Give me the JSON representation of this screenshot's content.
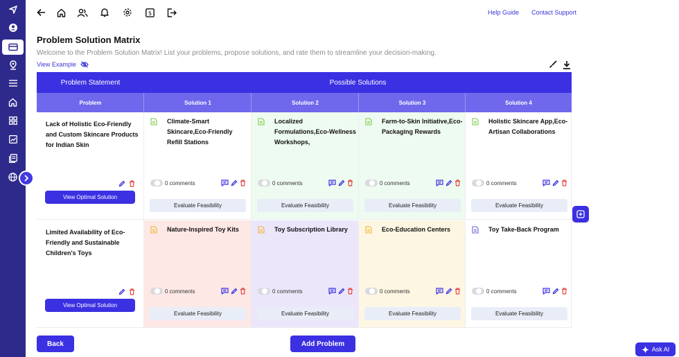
{
  "topbar": {
    "help_guide": "Help Guide",
    "contact_support": "Contact Support"
  },
  "page": {
    "title": "Problem Solution Matrix",
    "description": "Welcome to the Problem Solution Matrix! List your problems, propose solutions, and rate them to streamline your decision-making.",
    "view_example": "View Example"
  },
  "matrix": {
    "header_problem_statement": "Problem Statement",
    "header_possible_solutions": "Possible Solutions",
    "col_problem": "Problem",
    "solution_cols": [
      "Solution 1",
      "Solution 2",
      "Solution 3",
      "Solution 4"
    ],
    "view_optimal_label": "View Optimal Solution",
    "evaluate_label": "Evaluate Feasibility",
    "rows": [
      {
        "problem": "Lack of Holistic Eco-Friendly and Custom Skincare Products for Indian Skin",
        "solutions": [
          {
            "text": "Climate-Smart Skincare,Eco-Friendly Refill Stations",
            "comments": "0 comments",
            "bg": "#ffffff",
            "icon_color": "#7ac943"
          },
          {
            "text": "Localized Formulations,Eco-Wellness Workshops,",
            "comments": "0 comments",
            "bg": "#eefbf0",
            "icon_color": "#7ac943"
          },
          {
            "text": "Farm-to-Skin Initiative,Eco-Packaging Rewards",
            "comments": "0 comments",
            "bg": "#eefbf0",
            "icon_color": "#7ac943"
          },
          {
            "text": "Holistic Skincare App,Eco-Artisan Collaborations",
            "comments": "0 comments",
            "bg": "#ffffff",
            "icon_color": "#7ac943"
          }
        ]
      },
      {
        "problem": "Limited Availability of Eco-Friendly and Sustainable Children's Toys",
        "solutions": [
          {
            "text": "Nature-Inspired Toy Kits",
            "comments": "0 comments",
            "bg": "#fde8e6",
            "icon_color": "#f0b429"
          },
          {
            "text": "Toy Subscription Library",
            "comments": "0 comments",
            "bg": "#ece6fb",
            "icon_color": "#f0b429"
          },
          {
            "text": "Eco-Education Centers",
            "comments": "0 comments",
            "bg": "#fdf6e3",
            "icon_color": "#f0b429"
          },
          {
            "text": "Toy Take-Back Program",
            "comments": "0 comments",
            "bg": "#ffffff",
            "icon_color": "#6b5fd6"
          }
        ]
      }
    ]
  },
  "buttons": {
    "back": "Back",
    "add_problem": "Add Problem",
    "ask_ai": "Ask AI"
  },
  "colors": {
    "primary": "#3b30e2",
    "sidebar": "#2e2a8c",
    "subheader": "#6f68ec",
    "link": "#3b34d6",
    "delete": "#e5483f"
  },
  "icons": {
    "sidebar": [
      "logo-icon",
      "avatar-icon",
      "card-icon",
      "location-icon",
      "menu-icon",
      "home-icon",
      "grid-icon",
      "chart-icon",
      "document-icon",
      "globe-icon"
    ],
    "topbar": [
      "back-arrow-icon",
      "home-icon",
      "users-icon",
      "bell-icon",
      "settings-icon",
      "dollar-icon",
      "logout-icon"
    ]
  }
}
